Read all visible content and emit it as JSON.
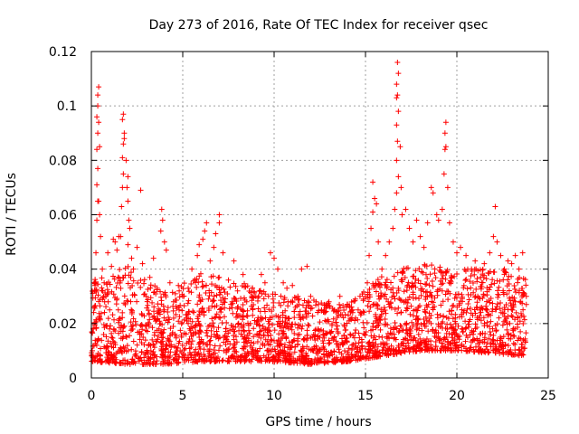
{
  "chart_data": {
    "type": "scatter",
    "title": "Day 273 of 2016, Rate Of TEC Index for receiver qsec",
    "xlabel": "GPS time / hours",
    "ylabel": "ROTI / TECUs",
    "xlim": [
      0,
      25
    ],
    "ylim": [
      0,
      0.12
    ],
    "xticks": [
      "0",
      "5",
      "10",
      "15",
      "20",
      "25"
    ],
    "yticks": [
      "0",
      "0.02",
      "0.04",
      "0.06",
      "0.08",
      "0.1",
      "0.12"
    ],
    "grid": true,
    "marker": "+",
    "color": "#ff0000",
    "series": [
      {
        "name": "ROTI",
        "points": [
          [
            0.05,
            0.01
          ],
          [
            0.1,
            0.018
          ],
          [
            0.15,
            0.026
          ],
          [
            0.2,
            0.034
          ],
          [
            0.25,
            0.046
          ],
          [
            0.3,
            0.058
          ],
          [
            0.35,
            0.065
          ],
          [
            0.3,
            0.071
          ],
          [
            0.35,
            0.077
          ],
          [
            0.3,
            0.084
          ],
          [
            0.35,
            0.09
          ],
          [
            0.3,
            0.096
          ],
          [
            0.35,
            0.1
          ],
          [
            0.35,
            0.104
          ],
          [
            0.4,
            0.107
          ],
          [
            0.4,
            0.094
          ],
          [
            0.45,
            0.085
          ],
          [
            0.4,
            0.065
          ],
          [
            0.45,
            0.06
          ],
          [
            0.5,
            0.052
          ],
          [
            0.6,
            0.04
          ],
          [
            0.7,
            0.035
          ],
          [
            0.8,
            0.03
          ],
          [
            0.9,
            0.046
          ],
          [
            1.0,
            0.025
          ],
          [
            1.1,
            0.041
          ],
          [
            1.2,
            0.051
          ],
          [
            1.3,
            0.05
          ],
          [
            1.4,
            0.047
          ],
          [
            1.5,
            0.052
          ],
          [
            1.6,
            0.052
          ],
          [
            1.65,
            0.063
          ],
          [
            1.7,
            0.07
          ],
          [
            1.75,
            0.075
          ],
          [
            1.7,
            0.081
          ],
          [
            1.75,
            0.086
          ],
          [
            1.8,
            0.09
          ],
          [
            1.7,
            0.095
          ],
          [
            1.75,
            0.097
          ],
          [
            1.8,
            0.088
          ],
          [
            1.9,
            0.08
          ],
          [
            2.0,
            0.074
          ],
          [
            1.95,
            0.07
          ],
          [
            2.0,
            0.065
          ],
          [
            2.05,
            0.058
          ],
          [
            2.1,
            0.055
          ],
          [
            2.0,
            0.049
          ],
          [
            2.2,
            0.044
          ],
          [
            2.3,
            0.04
          ],
          [
            2.5,
            0.048
          ],
          [
            2.7,
            0.069
          ],
          [
            2.8,
            0.042
          ],
          [
            3.0,
            0.03
          ],
          [
            3.2,
            0.037
          ],
          [
            3.4,
            0.044
          ],
          [
            3.6,
            0.033
          ],
          [
            3.8,
            0.054
          ],
          [
            3.85,
            0.062
          ],
          [
            3.9,
            0.058
          ],
          [
            4.0,
            0.05
          ],
          [
            4.1,
            0.047
          ],
          [
            4.3,
            0.035
          ],
          [
            4.5,
            0.028
          ],
          [
            4.8,
            0.025
          ],
          [
            5.0,
            0.03
          ],
          [
            5.3,
            0.033
          ],
          [
            5.5,
            0.04
          ],
          [
            5.8,
            0.045
          ],
          [
            5.9,
            0.049
          ],
          [
            6.1,
            0.051
          ],
          [
            6.2,
            0.054
          ],
          [
            6.3,
            0.057
          ],
          [
            6.5,
            0.043
          ],
          [
            6.7,
            0.048
          ],
          [
            6.8,
            0.053
          ],
          [
            7.0,
            0.057
          ],
          [
            7.0,
            0.06
          ],
          [
            7.2,
            0.046
          ],
          [
            7.5,
            0.036
          ],
          [
            7.8,
            0.043
          ],
          [
            8.0,
            0.032
          ],
          [
            8.3,
            0.038
          ],
          [
            8.5,
            0.028
          ],
          [
            8.8,
            0.033
          ],
          [
            9.0,
            0.03
          ],
          [
            9.3,
            0.038
          ],
          [
            9.5,
            0.035
          ],
          [
            9.8,
            0.046
          ],
          [
            10.0,
            0.044
          ],
          [
            10.2,
            0.04
          ],
          [
            10.5,
            0.035
          ],
          [
            10.7,
            0.033
          ],
          [
            11.0,
            0.034
          ],
          [
            11.3,
            0.03
          ],
          [
            11.5,
            0.04
          ],
          [
            11.8,
            0.041
          ],
          [
            12.0,
            0.03
          ],
          [
            12.3,
            0.028
          ],
          [
            12.6,
            0.025
          ],
          [
            13.0,
            0.028
          ],
          [
            13.3,
            0.025
          ],
          [
            13.6,
            0.03
          ],
          [
            14.0,
            0.027
          ],
          [
            14.3,
            0.024
          ],
          [
            14.6,
            0.025
          ],
          [
            14.9,
            0.029
          ],
          [
            15.0,
            0.03
          ],
          [
            15.1,
            0.035
          ],
          [
            15.2,
            0.045
          ],
          [
            15.3,
            0.055
          ],
          [
            15.4,
            0.061
          ],
          [
            15.5,
            0.066
          ],
          [
            15.4,
            0.072
          ],
          [
            15.6,
            0.064
          ],
          [
            15.7,
            0.05
          ],
          [
            15.9,
            0.04
          ],
          [
            16.1,
            0.045
          ],
          [
            16.3,
            0.05
          ],
          [
            16.5,
            0.055
          ],
          [
            16.6,
            0.062
          ],
          [
            16.7,
            0.068
          ],
          [
            16.8,
            0.074
          ],
          [
            16.7,
            0.08
          ],
          [
            16.75,
            0.087
          ],
          [
            16.7,
            0.093
          ],
          [
            16.8,
            0.098
          ],
          [
            16.7,
            0.103
          ],
          [
            16.75,
            0.104
          ],
          [
            16.7,
            0.108
          ],
          [
            16.8,
            0.112
          ],
          [
            16.75,
            0.116
          ],
          [
            16.9,
            0.085
          ],
          [
            16.95,
            0.07
          ],
          [
            17.0,
            0.06
          ],
          [
            17.2,
            0.062
          ],
          [
            17.4,
            0.055
          ],
          [
            17.6,
            0.05
          ],
          [
            17.8,
            0.058
          ],
          [
            18.0,
            0.052
          ],
          [
            18.2,
            0.048
          ],
          [
            18.4,
            0.057
          ],
          [
            18.6,
            0.07
          ],
          [
            18.7,
            0.068
          ],
          [
            18.9,
            0.06
          ],
          [
            19.0,
            0.058
          ],
          [
            19.2,
            0.062
          ],
          [
            19.3,
            0.075
          ],
          [
            19.35,
            0.084
          ],
          [
            19.4,
            0.085
          ],
          [
            19.35,
            0.09
          ],
          [
            19.4,
            0.094
          ],
          [
            19.5,
            0.07
          ],
          [
            19.6,
            0.057
          ],
          [
            19.8,
            0.05
          ],
          [
            20.0,
            0.046
          ],
          [
            20.2,
            0.048
          ],
          [
            20.5,
            0.045
          ],
          [
            20.8,
            0.04
          ],
          [
            21.0,
            0.043
          ],
          [
            21.3,
            0.037
          ],
          [
            21.5,
            0.042
          ],
          [
            21.8,
            0.046
          ],
          [
            22.0,
            0.052
          ],
          [
            22.1,
            0.063
          ],
          [
            22.2,
            0.05
          ],
          [
            22.4,
            0.045
          ],
          [
            22.6,
            0.04
          ],
          [
            22.8,
            0.043
          ],
          [
            23.0,
            0.042
          ],
          [
            23.2,
            0.045
          ],
          [
            23.4,
            0.04
          ],
          [
            23.6,
            0.046
          ],
          [
            23.8,
            0.03
          ]
        ]
      }
    ],
    "dense_band": {
      "description_free": true,
      "profile": [
        {
          "x": 0,
          "low": 0.006,
          "high": 0.03
        },
        {
          "x": 2,
          "low": 0.005,
          "high": 0.034
        },
        {
          "x": 4,
          "low": 0.005,
          "high": 0.026
        },
        {
          "x": 6,
          "low": 0.006,
          "high": 0.032
        },
        {
          "x": 8,
          "low": 0.006,
          "high": 0.03
        },
        {
          "x": 10,
          "low": 0.006,
          "high": 0.026
        },
        {
          "x": 12,
          "low": 0.005,
          "high": 0.024
        },
        {
          "x": 14,
          "low": 0.006,
          "high": 0.023
        },
        {
          "x": 16,
          "low": 0.008,
          "high": 0.032
        },
        {
          "x": 18,
          "low": 0.01,
          "high": 0.036
        },
        {
          "x": 20,
          "low": 0.01,
          "high": 0.034
        },
        {
          "x": 22,
          "low": 0.009,
          "high": 0.034
        },
        {
          "x": 23.8,
          "low": 0.008,
          "high": 0.032
        }
      ]
    }
  }
}
